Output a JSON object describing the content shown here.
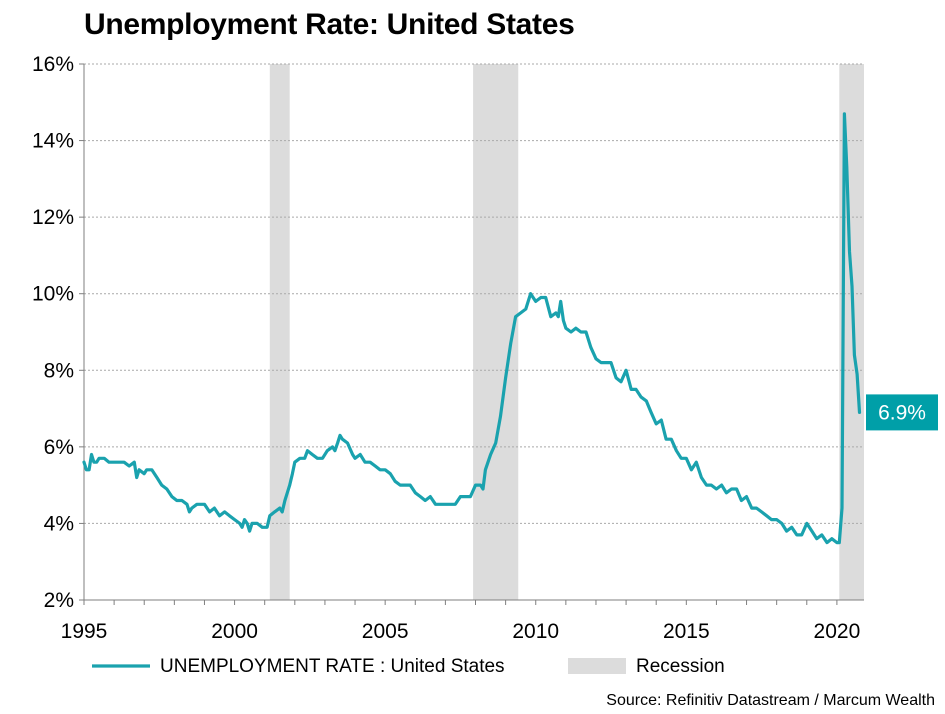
{
  "chart_data": {
    "type": "line",
    "title": "Unemployment Rate: United States",
    "xlabel": "",
    "ylabel": "",
    "xlim": [
      1995.0,
      2020.9
    ],
    "ylim": [
      2,
      16
    ],
    "x_ticks": [
      1995,
      2000,
      2005,
      2010,
      2015,
      2020
    ],
    "x_tick_labels": [
      "1995",
      "2000",
      "2005",
      "2010",
      "2015",
      "2020"
    ],
    "y_ticks": [
      2,
      4,
      6,
      8,
      10,
      12,
      14,
      16
    ],
    "y_tick_labels": [
      "2%",
      "4%",
      "6%",
      "8%",
      "10%",
      "12%",
      "14%",
      "16%"
    ],
    "grid": "horizontal dotted",
    "legend": "bottom",
    "series": [
      {
        "name": "UNEMPLOYMENT RATE : United States",
        "color": "#1aa2ae",
        "points": [
          [
            1995.0,
            5.6
          ],
          [
            1995.08,
            5.4
          ],
          [
            1995.17,
            5.4
          ],
          [
            1995.25,
            5.8
          ],
          [
            1995.33,
            5.6
          ],
          [
            1995.42,
            5.6
          ],
          [
            1995.5,
            5.7
          ],
          [
            1995.67,
            5.7
          ],
          [
            1995.83,
            5.6
          ],
          [
            1996.0,
            5.6
          ],
          [
            1996.17,
            5.6
          ],
          [
            1996.33,
            5.6
          ],
          [
            1996.5,
            5.5
          ],
          [
            1996.67,
            5.6
          ],
          [
            1996.75,
            5.2
          ],
          [
            1996.83,
            5.4
          ],
          [
            1997.0,
            5.3
          ],
          [
            1997.08,
            5.4
          ],
          [
            1997.25,
            5.4
          ],
          [
            1997.42,
            5.2
          ],
          [
            1997.58,
            5.0
          ],
          [
            1997.75,
            4.9
          ],
          [
            1997.92,
            4.7
          ],
          [
            1998.08,
            4.6
          ],
          [
            1998.25,
            4.6
          ],
          [
            1998.42,
            4.5
          ],
          [
            1998.5,
            4.3
          ],
          [
            1998.58,
            4.4
          ],
          [
            1998.75,
            4.5
          ],
          [
            1999.0,
            4.5
          ],
          [
            1999.17,
            4.3
          ],
          [
            1999.33,
            4.4
          ],
          [
            1999.5,
            4.2
          ],
          [
            1999.67,
            4.3
          ],
          [
            1999.83,
            4.2
          ],
          [
            2000.0,
            4.1
          ],
          [
            2000.17,
            4.0
          ],
          [
            2000.25,
            3.9
          ],
          [
            2000.33,
            4.1
          ],
          [
            2000.42,
            4.0
          ],
          [
            2000.5,
            3.8
          ],
          [
            2000.58,
            4.0
          ],
          [
            2000.75,
            4.0
          ],
          [
            2000.92,
            3.9
          ],
          [
            2001.08,
            3.9
          ],
          [
            2001.17,
            4.2
          ],
          [
            2001.33,
            4.3
          ],
          [
            2001.5,
            4.4
          ],
          [
            2001.58,
            4.3
          ],
          [
            2001.67,
            4.6
          ],
          [
            2001.75,
            4.8
          ],
          [
            2001.83,
            5.0
          ],
          [
            2001.92,
            5.3
          ],
          [
            2002.0,
            5.6
          ],
          [
            2002.17,
            5.7
          ],
          [
            2002.33,
            5.7
          ],
          [
            2002.42,
            5.9
          ],
          [
            2002.58,
            5.8
          ],
          [
            2002.75,
            5.7
          ],
          [
            2002.92,
            5.7
          ],
          [
            2003.08,
            5.9
          ],
          [
            2003.25,
            6.0
          ],
          [
            2003.33,
            5.9
          ],
          [
            2003.42,
            6.1
          ],
          [
            2003.5,
            6.3
          ],
          [
            2003.58,
            6.2
          ],
          [
            2003.75,
            6.1
          ],
          [
            2003.92,
            5.8
          ],
          [
            2004.0,
            5.7
          ],
          [
            2004.17,
            5.8
          ],
          [
            2004.33,
            5.6
          ],
          [
            2004.5,
            5.6
          ],
          [
            2004.67,
            5.5
          ],
          [
            2004.83,
            5.4
          ],
          [
            2005.0,
            5.4
          ],
          [
            2005.17,
            5.3
          ],
          [
            2005.33,
            5.1
          ],
          [
            2005.5,
            5.0
          ],
          [
            2005.67,
            5.0
          ],
          [
            2005.83,
            5.0
          ],
          [
            2006.0,
            4.8
          ],
          [
            2006.17,
            4.7
          ],
          [
            2006.33,
            4.6
          ],
          [
            2006.5,
            4.7
          ],
          [
            2006.67,
            4.5
          ],
          [
            2006.83,
            4.5
          ],
          [
            2007.0,
            4.5
          ],
          [
            2007.17,
            4.5
          ],
          [
            2007.33,
            4.5
          ],
          [
            2007.5,
            4.7
          ],
          [
            2007.67,
            4.7
          ],
          [
            2007.83,
            4.7
          ],
          [
            2008.0,
            5.0
          ],
          [
            2008.17,
            5.0
          ],
          [
            2008.25,
            4.9
          ],
          [
            2008.33,
            5.4
          ],
          [
            2008.5,
            5.8
          ],
          [
            2008.67,
            6.1
          ],
          [
            2008.83,
            6.8
          ],
          [
            2009.0,
            7.8
          ],
          [
            2009.17,
            8.7
          ],
          [
            2009.33,
            9.4
          ],
          [
            2009.5,
            9.5
          ],
          [
            2009.67,
            9.6
          ],
          [
            2009.83,
            10.0
          ],
          [
            2010.0,
            9.8
          ],
          [
            2010.17,
            9.9
          ],
          [
            2010.33,
            9.9
          ],
          [
            2010.5,
            9.4
          ],
          [
            2010.67,
            9.5
          ],
          [
            2010.75,
            9.4
          ],
          [
            2010.83,
            9.8
          ],
          [
            2010.92,
            9.3
          ],
          [
            2011.0,
            9.1
          ],
          [
            2011.17,
            9.0
          ],
          [
            2011.33,
            9.1
          ],
          [
            2011.5,
            9.0
          ],
          [
            2011.67,
            9.0
          ],
          [
            2011.83,
            8.6
          ],
          [
            2012.0,
            8.3
          ],
          [
            2012.17,
            8.2
          ],
          [
            2012.33,
            8.2
          ],
          [
            2012.5,
            8.2
          ],
          [
            2012.67,
            7.8
          ],
          [
            2012.83,
            7.7
          ],
          [
            2013.0,
            8.0
          ],
          [
            2013.17,
            7.5
          ],
          [
            2013.33,
            7.5
          ],
          [
            2013.5,
            7.3
          ],
          [
            2013.67,
            7.2
          ],
          [
            2013.83,
            6.9
          ],
          [
            2014.0,
            6.6
          ],
          [
            2014.17,
            6.7
          ],
          [
            2014.33,
            6.2
          ],
          [
            2014.5,
            6.2
          ],
          [
            2014.67,
            5.9
          ],
          [
            2014.83,
            5.7
          ],
          [
            2015.0,
            5.7
          ],
          [
            2015.17,
            5.4
          ],
          [
            2015.33,
            5.6
          ],
          [
            2015.5,
            5.2
          ],
          [
            2015.67,
            5.0
          ],
          [
            2015.83,
            5.0
          ],
          [
            2016.0,
            4.9
          ],
          [
            2016.17,
            5.0
          ],
          [
            2016.33,
            4.8
          ],
          [
            2016.5,
            4.9
          ],
          [
            2016.67,
            4.9
          ],
          [
            2016.83,
            4.6
          ],
          [
            2017.0,
            4.7
          ],
          [
            2017.17,
            4.4
          ],
          [
            2017.33,
            4.4
          ],
          [
            2017.5,
            4.3
          ],
          [
            2017.67,
            4.2
          ],
          [
            2017.83,
            4.1
          ],
          [
            2018.0,
            4.1
          ],
          [
            2018.17,
            4.0
          ],
          [
            2018.33,
            3.8
          ],
          [
            2018.5,
            3.9
          ],
          [
            2018.67,
            3.7
          ],
          [
            2018.83,
            3.7
          ],
          [
            2019.0,
            4.0
          ],
          [
            2019.17,
            3.8
          ],
          [
            2019.33,
            3.6
          ],
          [
            2019.5,
            3.7
          ],
          [
            2019.67,
            3.5
          ],
          [
            2019.83,
            3.6
          ],
          [
            2020.0,
            3.5
          ],
          [
            2020.08,
            3.5
          ],
          [
            2020.17,
            4.4
          ],
          [
            2020.25,
            14.7
          ],
          [
            2020.33,
            13.3
          ],
          [
            2020.42,
            11.1
          ],
          [
            2020.5,
            10.2
          ],
          [
            2020.58,
            8.4
          ],
          [
            2020.67,
            7.9
          ],
          [
            2020.75,
            6.9
          ]
        ]
      }
    ],
    "recessions": [
      {
        "start": 2001.17,
        "end": 2001.83
      },
      {
        "start": 2007.92,
        "end": 2009.42
      },
      {
        "start": 2020.08,
        "end": 2020.9
      }
    ],
    "recession_color": "#dcdcdc",
    "legend_entries": [
      {
        "label": "UNEMPLOYMENT RATE : United States",
        "kind": "line",
        "color": "#1aa2ae"
      },
      {
        "label": "Recession",
        "kind": "box",
        "color": "#dcdcdc"
      }
    ],
    "callout": {
      "label": "6.9%",
      "value": 6.9,
      "color": "#009fa8"
    },
    "source": "Source: Refinitiv Datastream / Marcum Wealth"
  }
}
